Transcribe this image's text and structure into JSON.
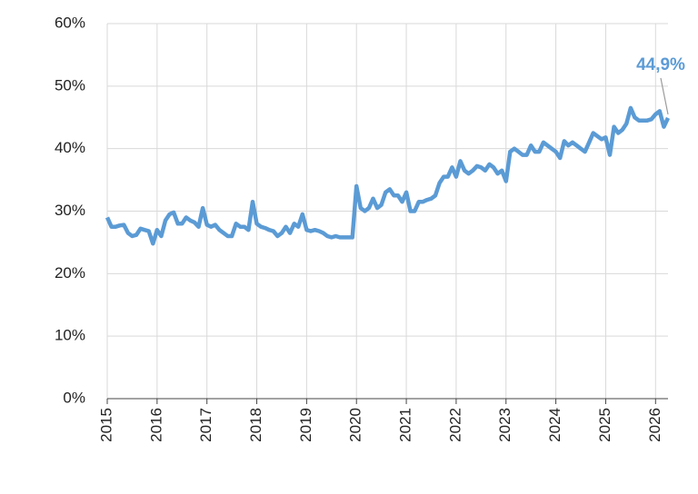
{
  "chart_data": {
    "type": "line",
    "annotation": "44,9%",
    "color": "#5b9bd5",
    "grid": true,
    "x": [
      2015,
      2015.083,
      2015.167,
      2015.25,
      2015.333,
      2015.417,
      2015.5,
      2015.583,
      2015.667,
      2015.75,
      2015.833,
      2015.917,
      2016,
      2016.083,
      2016.167,
      2016.25,
      2016.333,
      2016.417,
      2016.5,
      2016.583,
      2016.667,
      2016.75,
      2016.833,
      2016.917,
      2017,
      2017.083,
      2017.167,
      2017.25,
      2017.333,
      2017.417,
      2017.5,
      2017.583,
      2017.667,
      2017.75,
      2017.833,
      2017.917,
      2018,
      2018.083,
      2018.167,
      2018.25,
      2018.333,
      2018.417,
      2018.5,
      2018.583,
      2018.667,
      2018.75,
      2018.833,
      2018.917,
      2019,
      2019.083,
      2019.167,
      2019.25,
      2019.333,
      2019.417,
      2019.5,
      2019.583,
      2019.667,
      2019.75,
      2019.833,
      2019.917,
      2020,
      2020.083,
      2020.167,
      2020.25,
      2020.333,
      2020.417,
      2020.5,
      2020.583,
      2020.667,
      2020.75,
      2020.833,
      2020.917,
      2021,
      2021.083,
      2021.167,
      2021.25,
      2021.333,
      2021.417,
      2021.5,
      2021.583,
      2021.667,
      2021.75,
      2021.833,
      2021.917,
      2022,
      2022.083,
      2022.167,
      2022.25,
      2022.333,
      2022.417,
      2022.5,
      2022.583,
      2022.667,
      2022.75,
      2022.833,
      2022.917,
      2023,
      2023.083,
      2023.167,
      2023.25,
      2023.333,
      2023.417,
      2023.5,
      2023.583,
      2023.667,
      2023.75,
      2023.833,
      2023.917,
      2024,
      2024.083,
      2024.167,
      2024.25,
      2024.333,
      2024.417,
      2024.5,
      2024.583,
      2024.667,
      2024.75,
      2024.833,
      2024.917,
      2025,
      2025.083,
      2025.167,
      2025.25,
      2025.333,
      2025.417,
      2025.5,
      2025.583,
      2025.667,
      2025.75,
      2025.833,
      2025.917,
      2026,
      2026.083,
      2026.167,
      2026.25
    ],
    "values": [
      29,
      27.5,
      27.5,
      27.7,
      27.8,
      26.5,
      26,
      26.2,
      27.2,
      27,
      26.8,
      24.8,
      27,
      26,
      28.5,
      29.5,
      29.8,
      28,
      28,
      29,
      28.5,
      28.2,
      27.5,
      30.5,
      27.8,
      27.5,
      27.8,
      27,
      26.5,
      26,
      26,
      28,
      27.5,
      27.5,
      27,
      31.5,
      28,
      27.5,
      27.3,
      27,
      26.8,
      26,
      26.5,
      27.5,
      26.5,
      28,
      27.5,
      29.5,
      27,
      26.8,
      27,
      26.8,
      26.5,
      26,
      25.8,
      26,
      25.8,
      25.8,
      25.8,
      25.8,
      34,
      30.5,
      30,
      30.5,
      32,
      30.5,
      31,
      33,
      33.5,
      32.5,
      32.5,
      31.5,
      33,
      30,
      30,
      31.5,
      31.5,
      31.8,
      32,
      32.5,
      34.5,
      35.5,
      35.5,
      37,
      35.5,
      38,
      36.5,
      36,
      36.5,
      37.2,
      37,
      36.5,
      37.5,
      37,
      36,
      36.5,
      34.8,
      39.5,
      40,
      39.5,
      39,
      39,
      40.5,
      39.5,
      39.5,
      41,
      40.5,
      40,
      39.5,
      38.5,
      41.2,
      40.5,
      41,
      40.5,
      40,
      39.5,
      41,
      42.5,
      42,
      41.5,
      41.8,
      39,
      43.5,
      42.5,
      43,
      44,
      46.5,
      45,
      44.5,
      44.5,
      44.5,
      44.7,
      45.5,
      46,
      43.5,
      44.9
    ],
    "xlim": [
      2015,
      2026.25
    ],
    "xticks": [
      2015,
      2016,
      2017,
      2018,
      2019,
      2020,
      2021,
      2022,
      2023,
      2024,
      2025,
      2026
    ],
    "ylim": [
      0,
      60
    ],
    "yticks": [
      {
        "value": 0,
        "label": "0%"
      },
      {
        "value": 10,
        "label": "10%"
      },
      {
        "value": 20,
        "label": "20%"
      },
      {
        "value": 30,
        "label": "30%"
      },
      {
        "value": 40,
        "label": "40%"
      },
      {
        "value": 50,
        "label": "50%"
      },
      {
        "value": 60,
        "label": "60%"
      }
    ]
  }
}
